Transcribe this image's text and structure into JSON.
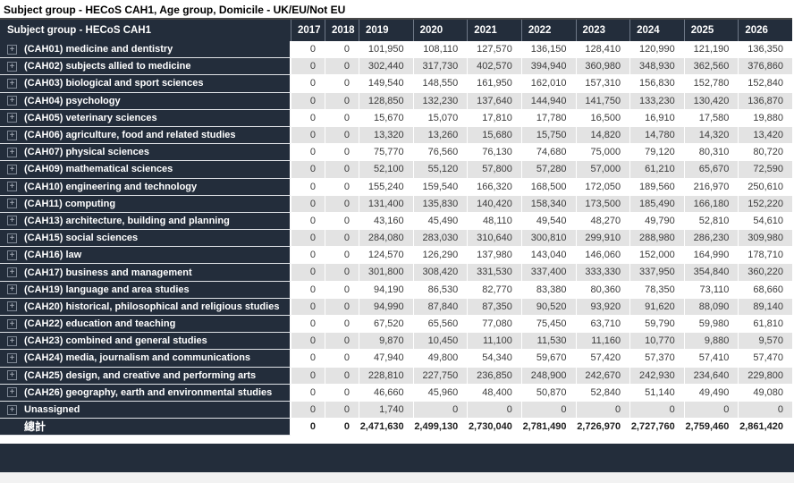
{
  "title": "Subject group - HECoS CAH1, Age group, Domicile - UK/EU/Not EU",
  "icons": {
    "expand": "+"
  },
  "colors": {
    "header_bg": "#232d3b",
    "label_column_bg": "#232d3b",
    "row_stripe": "#e3e3e3",
    "selected_cell": "#c8c8c8",
    "bottom_bar": "#232d3b",
    "page_footer_bg": "#f2f2f2",
    "header_text": "#ffffff",
    "value_text": "#3b3b3b"
  },
  "table": {
    "label_header": "Subject group - HECoS CAH1",
    "year_headers": [
      "2017",
      "2018",
      "2019",
      "2020",
      "2021",
      "2022",
      "2023",
      "2024",
      "2025",
      "2026"
    ],
    "highlight_cell": {
      "row_index": 13,
      "col_index": 5,
      "value": "337,400"
    },
    "rows": [
      {
        "label": "(CAH01) medicine and dentistry",
        "expandable": true,
        "total": false,
        "values": [
          "0",
          "0",
          "101,950",
          "108,110",
          "127,570",
          "136,150",
          "128,410",
          "120,990",
          "121,190",
          "136,350"
        ]
      },
      {
        "label": "(CAH02) subjects allied to medicine",
        "expandable": true,
        "total": false,
        "values": [
          "0",
          "0",
          "302,440",
          "317,730",
          "402,570",
          "394,940",
          "360,980",
          "348,930",
          "362,560",
          "376,860"
        ]
      },
      {
        "label": "(CAH03) biological and sport sciences",
        "expandable": true,
        "total": false,
        "values": [
          "0",
          "0",
          "149,540",
          "148,550",
          "161,950",
          "162,010",
          "157,310",
          "156,830",
          "152,780",
          "152,840"
        ]
      },
      {
        "label": "(CAH04) psychology",
        "expandable": true,
        "total": false,
        "values": [
          "0",
          "0",
          "128,850",
          "132,230",
          "137,640",
          "144,940",
          "141,750",
          "133,230",
          "130,420",
          "136,870"
        ]
      },
      {
        "label": "(CAH05) veterinary sciences",
        "expandable": true,
        "total": false,
        "values": [
          "0",
          "0",
          "15,670",
          "15,070",
          "17,810",
          "17,780",
          "16,500",
          "16,910",
          "17,580",
          "19,880"
        ]
      },
      {
        "label": "(CAH06) agriculture, food and related studies",
        "expandable": true,
        "total": false,
        "values": [
          "0",
          "0",
          "13,320",
          "13,260",
          "15,680",
          "15,750",
          "14,820",
          "14,780",
          "14,320",
          "13,420"
        ]
      },
      {
        "label": "(CAH07) physical sciences",
        "expandable": true,
        "total": false,
        "values": [
          "0",
          "0",
          "75,770",
          "76,560",
          "76,130",
          "74,680",
          "75,000",
          "79,120",
          "80,310",
          "80,720"
        ]
      },
      {
        "label": "(CAH09) mathematical sciences",
        "expandable": true,
        "total": false,
        "values": [
          "0",
          "0",
          "52,100",
          "55,120",
          "57,800",
          "57,280",
          "57,000",
          "61,210",
          "65,670",
          "72,590"
        ]
      },
      {
        "label": "(CAH10) engineering and technology",
        "expandable": true,
        "total": false,
        "values": [
          "0",
          "0",
          "155,240",
          "159,540",
          "166,320",
          "168,500",
          "172,050",
          "189,560",
          "216,970",
          "250,610"
        ]
      },
      {
        "label": "(CAH11) computing",
        "expandable": true,
        "total": false,
        "values": [
          "0",
          "0",
          "131,400",
          "135,830",
          "140,420",
          "158,340",
          "173,500",
          "185,490",
          "166,180",
          "152,220"
        ]
      },
      {
        "label": "(CAH13) architecture, building and planning",
        "expandable": true,
        "total": false,
        "values": [
          "0",
          "0",
          "43,160",
          "45,490",
          "48,110",
          "49,540",
          "48,270",
          "49,790",
          "52,810",
          "54,610"
        ]
      },
      {
        "label": "(CAH15) social sciences",
        "expandable": true,
        "total": false,
        "values": [
          "0",
          "0",
          "284,080",
          "283,030",
          "310,640",
          "300,810",
          "299,910",
          "288,980",
          "286,230",
          "309,980"
        ]
      },
      {
        "label": "(CAH16) law",
        "expandable": true,
        "total": false,
        "values": [
          "0",
          "0",
          "124,570",
          "126,290",
          "137,980",
          "143,040",
          "146,060",
          "152,000",
          "164,990",
          "178,710"
        ]
      },
      {
        "label": "(CAH17) business and management",
        "expandable": true,
        "total": false,
        "values": [
          "0",
          "0",
          "301,800",
          "308,420",
          "331,530",
          "337,400",
          "333,330",
          "337,950",
          "354,840",
          "360,220"
        ]
      },
      {
        "label": "(CAH19) language and area studies",
        "expandable": true,
        "total": false,
        "values": [
          "0",
          "0",
          "94,190",
          "86,530",
          "82,770",
          "83,380",
          "80,360",
          "78,350",
          "73,110",
          "68,660"
        ]
      },
      {
        "label": "(CAH20) historical, philosophical and religious studies",
        "expandable": true,
        "total": false,
        "values": [
          "0",
          "0",
          "94,990",
          "87,840",
          "87,350",
          "90,520",
          "93,920",
          "91,620",
          "88,090",
          "89,140"
        ]
      },
      {
        "label": "(CAH22) education and teaching",
        "expandable": true,
        "total": false,
        "values": [
          "0",
          "0",
          "67,520",
          "65,560",
          "77,080",
          "75,450",
          "63,710",
          "59,790",
          "59,980",
          "61,810"
        ]
      },
      {
        "label": "(CAH23) combined and general studies",
        "expandable": true,
        "total": false,
        "values": [
          "0",
          "0",
          "9,870",
          "10,450",
          "11,100",
          "11,530",
          "11,160",
          "10,770",
          "9,880",
          "9,570"
        ]
      },
      {
        "label": "(CAH24) media, journalism and communications",
        "expandable": true,
        "total": false,
        "values": [
          "0",
          "0",
          "47,940",
          "49,800",
          "54,340",
          "59,670",
          "57,420",
          "57,370",
          "57,410",
          "57,470"
        ]
      },
      {
        "label": "(CAH25) design, and creative and performing arts",
        "expandable": true,
        "total": false,
        "values": [
          "0",
          "0",
          "228,810",
          "227,750",
          "236,850",
          "248,900",
          "242,670",
          "242,930",
          "234,640",
          "229,800"
        ]
      },
      {
        "label": "(CAH26) geography, earth and environmental studies",
        "expandable": true,
        "total": false,
        "values": [
          "0",
          "0",
          "46,660",
          "45,960",
          "48,400",
          "50,870",
          "52,840",
          "51,140",
          "49,490",
          "49,080"
        ]
      },
      {
        "label": "Unassigned",
        "expandable": true,
        "total": false,
        "values": [
          "0",
          "0",
          "1,740",
          "0",
          "0",
          "0",
          "0",
          "0",
          "0",
          "0"
        ]
      },
      {
        "label": "總計",
        "expandable": false,
        "total": true,
        "values": [
          "0",
          "0",
          "2,471,630",
          "2,499,130",
          "2,730,040",
          "2,781,490",
          "2,726,970",
          "2,727,760",
          "2,759,460",
          "2,861,420"
        ]
      }
    ]
  }
}
